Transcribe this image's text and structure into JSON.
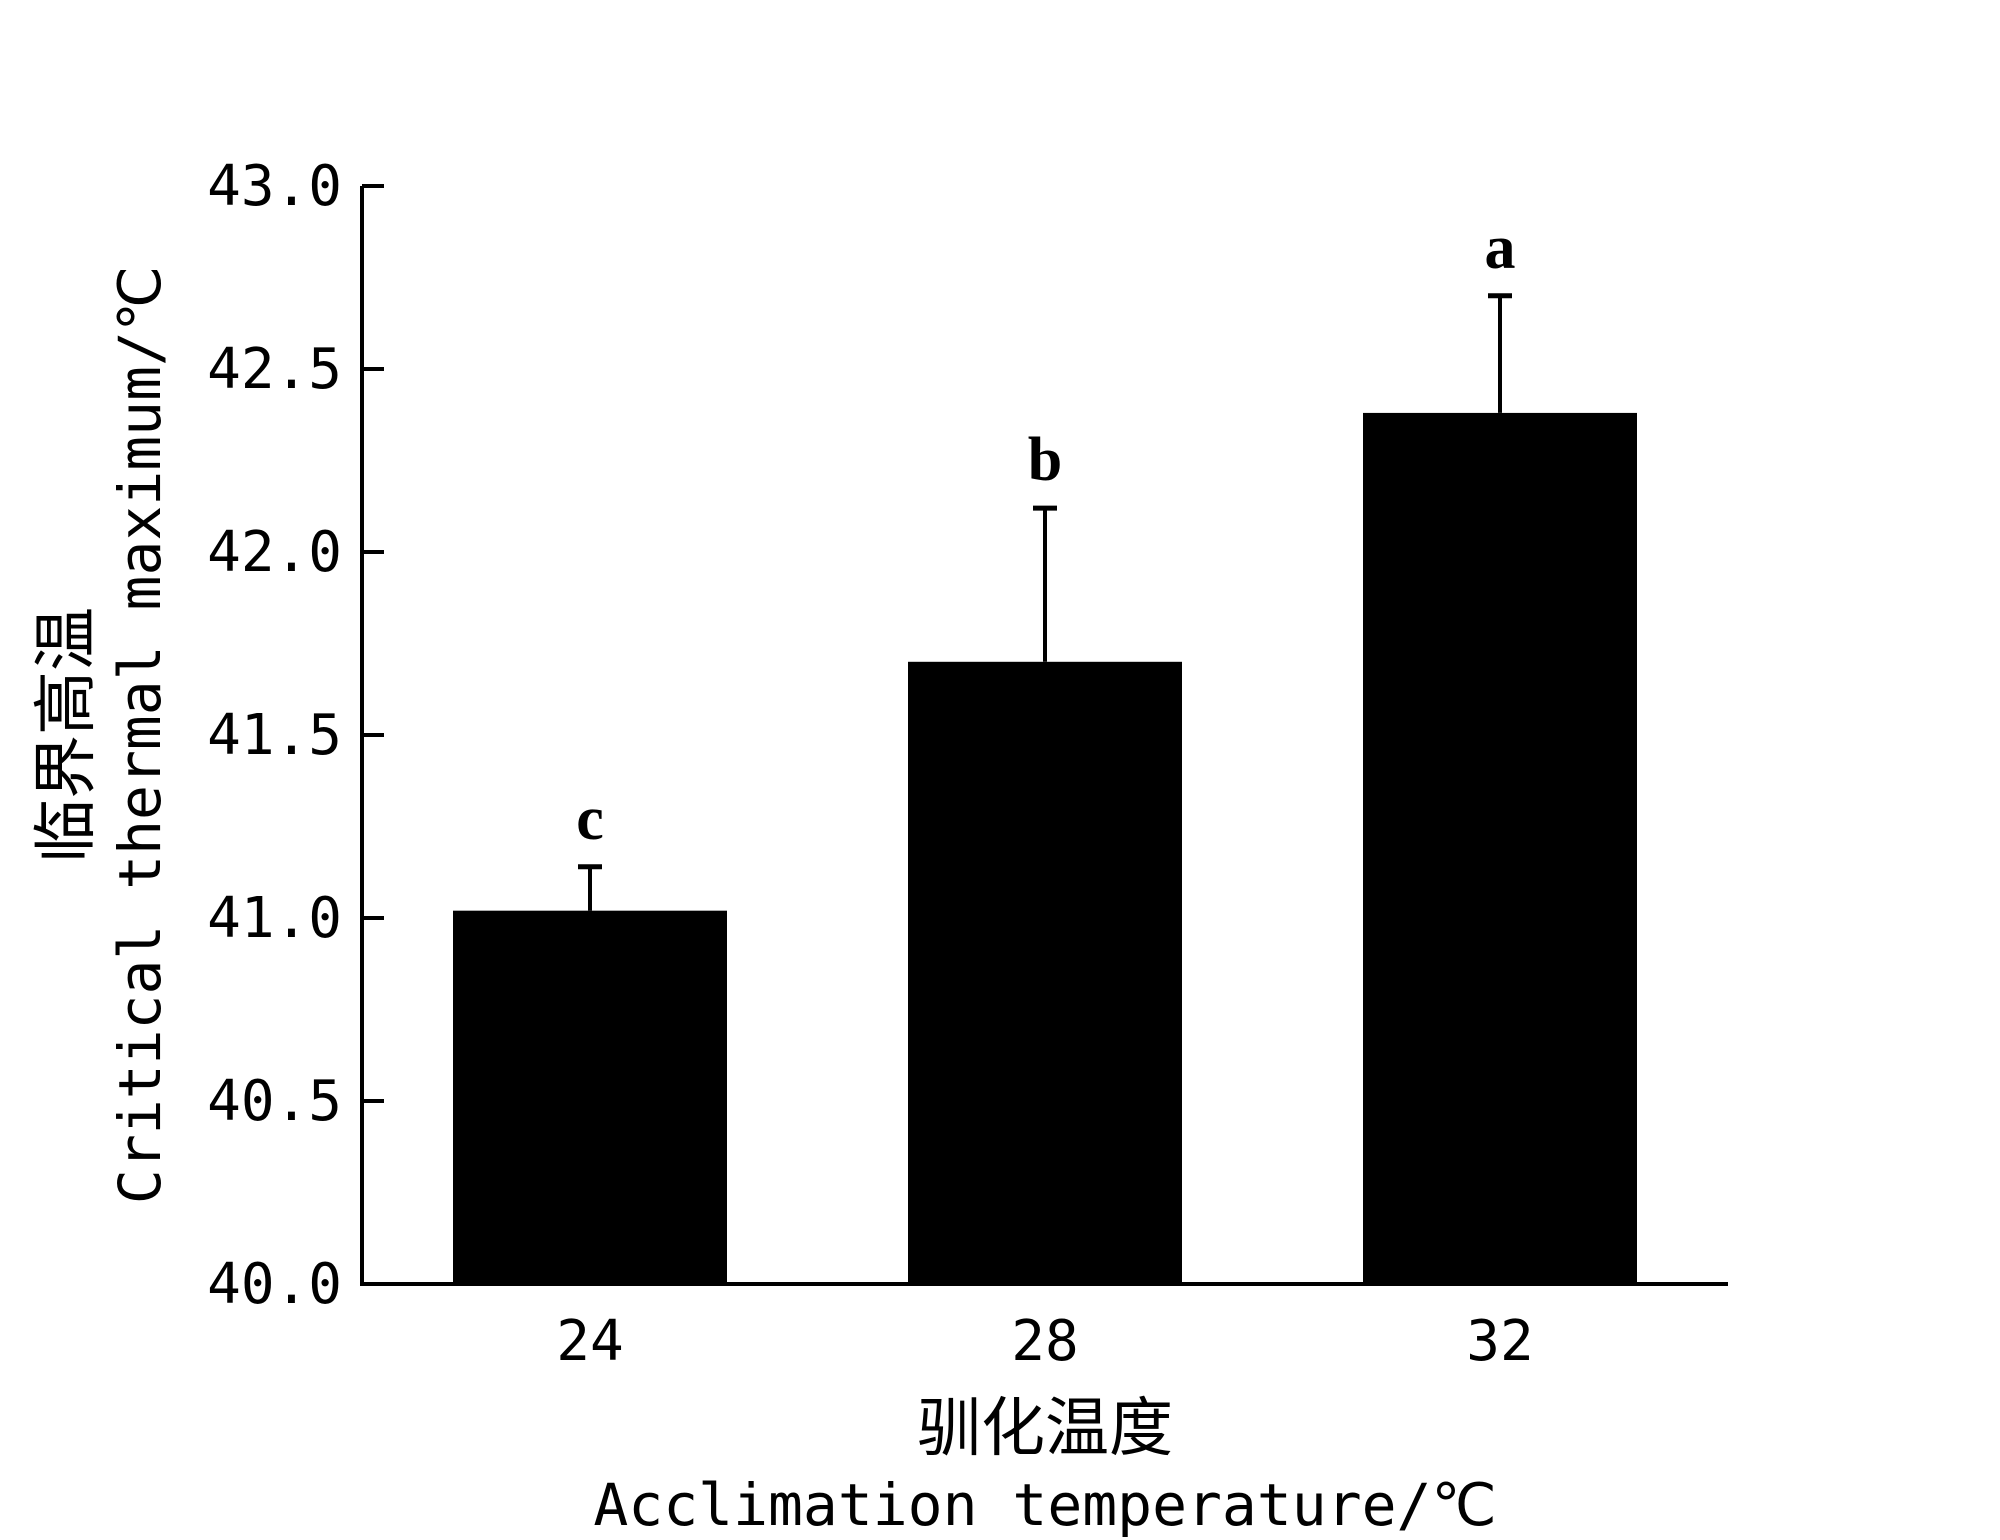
{
  "chart_data": {
    "type": "bar",
    "categories": [
      "24",
      "28",
      "32"
    ],
    "values": [
      41.02,
      41.7,
      42.38
    ],
    "error": [
      0.12,
      0.42,
      0.32
    ],
    "significance": [
      "c",
      "b",
      "a"
    ],
    "ylim": [
      40.0,
      43.0
    ],
    "yticks": [
      "40.0",
      "40.5",
      "41.0",
      "41.5",
      "42.0",
      "42.5",
      "43.0"
    ],
    "ytick_values": [
      40.0,
      40.5,
      41.0,
      41.5,
      42.0,
      42.5,
      43.0
    ],
    "xlabel_cn": "驯化温度",
    "xlabel_en": "Acclimation temperature/℃",
    "ylabel_cn": "临界高温",
    "ylabel_en": "Critical thermal maximum/℃",
    "bar_color": "#000000",
    "grid": false,
    "legend": "none"
  }
}
